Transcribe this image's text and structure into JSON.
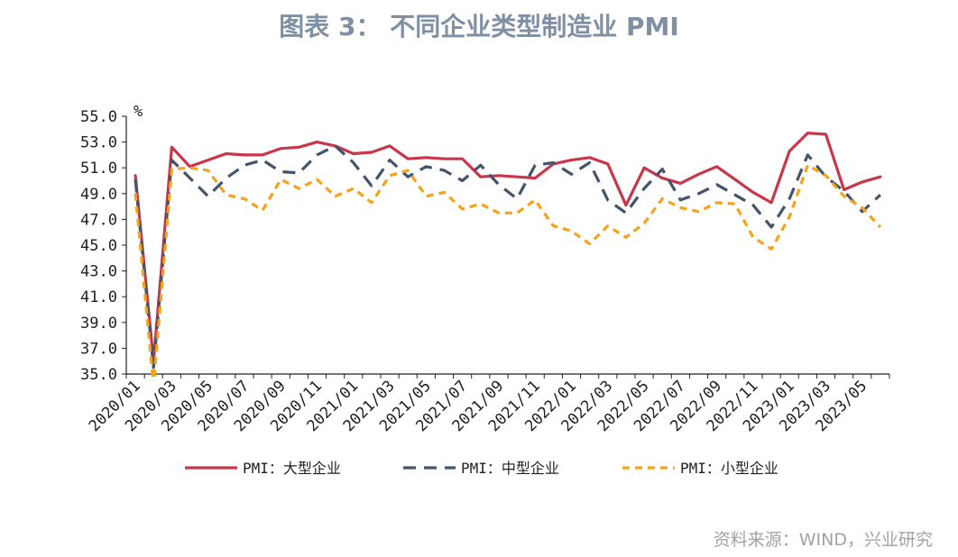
{
  "title": "图表 3：  不同企业类型制造业 PMI",
  "source": "资料来源：WIND，兴业研究",
  "chart_data": {
    "type": "line",
    "unit": "%",
    "ylim": [
      35.0,
      55.0
    ],
    "yticks": [
      "35.0",
      "37.0",
      "39.0",
      "41.0",
      "43.0",
      "45.0",
      "47.0",
      "49.0",
      "51.0",
      "53.0",
      "55.0"
    ],
    "x": [
      "2020/01",
      "2020/02",
      "2020/03",
      "2020/04",
      "2020/05",
      "2020/06",
      "2020/07",
      "2020/08",
      "2020/09",
      "2020/10",
      "2020/11",
      "2020/12",
      "2021/01",
      "2021/02",
      "2021/03",
      "2021/04",
      "2021/05",
      "2021/06",
      "2021/07",
      "2021/08",
      "2021/09",
      "2021/10",
      "2021/11",
      "2021/12",
      "2022/01",
      "2022/02",
      "2022/03",
      "2022/04",
      "2022/05",
      "2022/06",
      "2022/07",
      "2022/08",
      "2022/09",
      "2022/10",
      "2022/11",
      "2022/12",
      "2023/01",
      "2023/02",
      "2023/03",
      "2023/04",
      "2023/05",
      "2023/06"
    ],
    "xtick_labels": [
      "2020/01",
      "2020/03",
      "2020/05",
      "2020/07",
      "2020/09",
      "2020/11",
      "2021/01",
      "2021/03",
      "2021/05",
      "2021/07",
      "2021/09",
      "2021/11",
      "2022/01",
      "2022/03",
      "2022/05",
      "2022/07",
      "2022/09",
      "2022/11",
      "2023/01",
      "2023/03",
      "2023/05"
    ],
    "legend_position": "bottom",
    "series": [
      {
        "name": "PMI：大型企业",
        "color": "#c8364b",
        "style": "solid",
        "values": [
          50.4,
          36.0,
          52.6,
          51.1,
          51.6,
          52.1,
          52.0,
          52.0,
          52.5,
          52.6,
          53.0,
          52.7,
          52.1,
          52.2,
          52.7,
          51.7,
          51.8,
          51.7,
          51.7,
          50.3,
          50.4,
          50.3,
          50.2,
          51.3,
          51.6,
          51.8,
          51.3,
          48.1,
          51.0,
          50.2,
          49.8,
          50.5,
          51.1,
          50.1,
          49.1,
          48.3,
          52.3,
          53.7,
          53.6,
          49.3,
          49.9,
          50.3
        ]
      },
      {
        "name": "PMI：中型企业",
        "color": "#44546a",
        "style": "dashed",
        "values": [
          50.1,
          35.5,
          51.6,
          50.2,
          48.8,
          50.2,
          51.2,
          51.6,
          50.7,
          50.6,
          52.0,
          52.7,
          51.4,
          49.6,
          51.6,
          50.3,
          51.1,
          50.8,
          50.0,
          51.2,
          49.7,
          48.6,
          51.2,
          51.4,
          50.5,
          51.4,
          48.5,
          47.5,
          49.4,
          50.9,
          48.5,
          49.0,
          49.7,
          48.9,
          48.1,
          46.4,
          48.6,
          52.0,
          50.3,
          49.2,
          47.6,
          48.9
        ]
      },
      {
        "name": "PMI：小型企业",
        "color": "#f5a31a",
        "style": "dashed",
        "values": [
          49.0,
          34.1,
          50.9,
          51.0,
          50.8,
          48.9,
          48.6,
          47.7,
          50.1,
          49.4,
          50.1,
          48.8,
          49.4,
          48.3,
          50.4,
          50.8,
          48.8,
          49.1,
          47.8,
          48.2,
          47.5,
          47.5,
          48.5,
          46.5,
          46.1,
          45.1,
          46.5,
          45.6,
          46.7,
          48.6,
          47.9,
          47.6,
          48.3,
          48.2,
          45.6,
          44.7,
          47.2,
          51.2,
          50.4,
          48.8,
          47.9,
          46.4
        ]
      }
    ]
  }
}
